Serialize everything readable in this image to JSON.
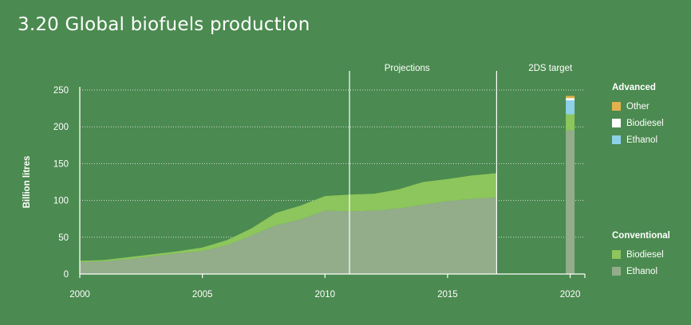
{
  "title": "3.20 Global biofuels production",
  "colors": {
    "background": "#4b8a50",
    "conventional_biodiesel": "#8cc65c",
    "conventional_ethanol": "#93ad8b",
    "advanced_other": "#e3b24c",
    "advanced_biodiesel": "#ffffff",
    "advanced_ethanol": "#8dd0e8"
  },
  "chart_data": {
    "type": "area",
    "ylabel": "Billion litres",
    "xlabel": "",
    "xlim": [
      2000,
      2020.6
    ],
    "ylim": [
      0,
      250
    ],
    "yticks": [
      0,
      50,
      100,
      150,
      200,
      250
    ],
    "xticks": [
      2000,
      2005,
      2010,
      2015,
      2020
    ],
    "grid": "horizontal dotted",
    "annotations": [
      {
        "text": "Projections",
        "x": 2011
      },
      {
        "text": "2DS target",
        "x": 2017
      }
    ],
    "x": [
      2000,
      2001,
      2002,
      2003,
      2004,
      2005,
      2006,
      2007,
      2008,
      2009,
      2010,
      2011,
      2012,
      2013,
      2014,
      2015,
      2016,
      2017
    ],
    "series": [
      {
        "name": "Ethanol",
        "group": "Conventional",
        "values": [
          16,
          17,
          20,
          24,
          28,
          31,
          39,
          52,
          66,
          74,
          86,
          85,
          86,
          89,
          94,
          99,
          102,
          104
        ]
      },
      {
        "name": "Biodiesel",
        "group": "Conventional",
        "values": [
          2,
          2,
          3,
          3,
          3,
          5,
          7,
          10,
          17,
          19,
          20,
          23,
          23,
          26,
          31,
          30,
          32,
          33
        ]
      }
    ],
    "target_2020": {
      "year": 2020,
      "conventional_ethanol": 195,
      "conventional_biodiesel": 22,
      "advanced_ethanol": 19,
      "advanced_biodiesel": 3,
      "advanced_other": 3
    },
    "legend": {
      "advanced_title": "Advanced",
      "advanced_items": [
        {
          "label": "Other",
          "color_key": "advanced_other"
        },
        {
          "label": "Biodiesel",
          "color_key": "advanced_biodiesel"
        },
        {
          "label": "Ethanol",
          "color_key": "advanced_ethanol"
        }
      ],
      "conventional_title": "Conventional",
      "conventional_items": [
        {
          "label": "Biodiesel",
          "color_key": "conventional_biodiesel"
        },
        {
          "label": "Ethanol",
          "color_key": "conventional_ethanol"
        }
      ]
    }
  }
}
